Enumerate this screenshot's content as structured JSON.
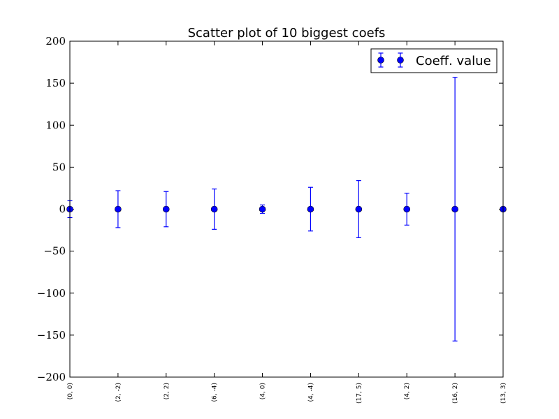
{
  "chart_data": {
    "type": "scatter",
    "title": "Scatter plot of 10 biggest coefs",
    "xlabel": "",
    "ylabel": "",
    "ylim": [
      -200,
      200
    ],
    "yticks": [
      200,
      150,
      100,
      50,
      0,
      -50,
      -100,
      -150,
      -200
    ],
    "ytick_labels": [
      "200",
      "150",
      "100",
      "50",
      "0",
      "−50",
      "−100",
      "−150",
      "−200"
    ],
    "categories": [
      "(0, 0)",
      "(2, -2)",
      "(2, 2)",
      "(6, -4)",
      "(4, 0)",
      "(4, -4)",
      "(17, 5)",
      "(4, 2)",
      "(16, 2)",
      "(13, 3)"
    ],
    "series": [
      {
        "name": "Coeff. value",
        "color": "#0000ff",
        "values": [
          0,
          0,
          0,
          0,
          0,
          0,
          0,
          0,
          0,
          0
        ],
        "errors": [
          10,
          22,
          21,
          24,
          5,
          26,
          34,
          19,
          157,
          0
        ]
      }
    ],
    "legend_position": "top-right",
    "grid": false
  }
}
